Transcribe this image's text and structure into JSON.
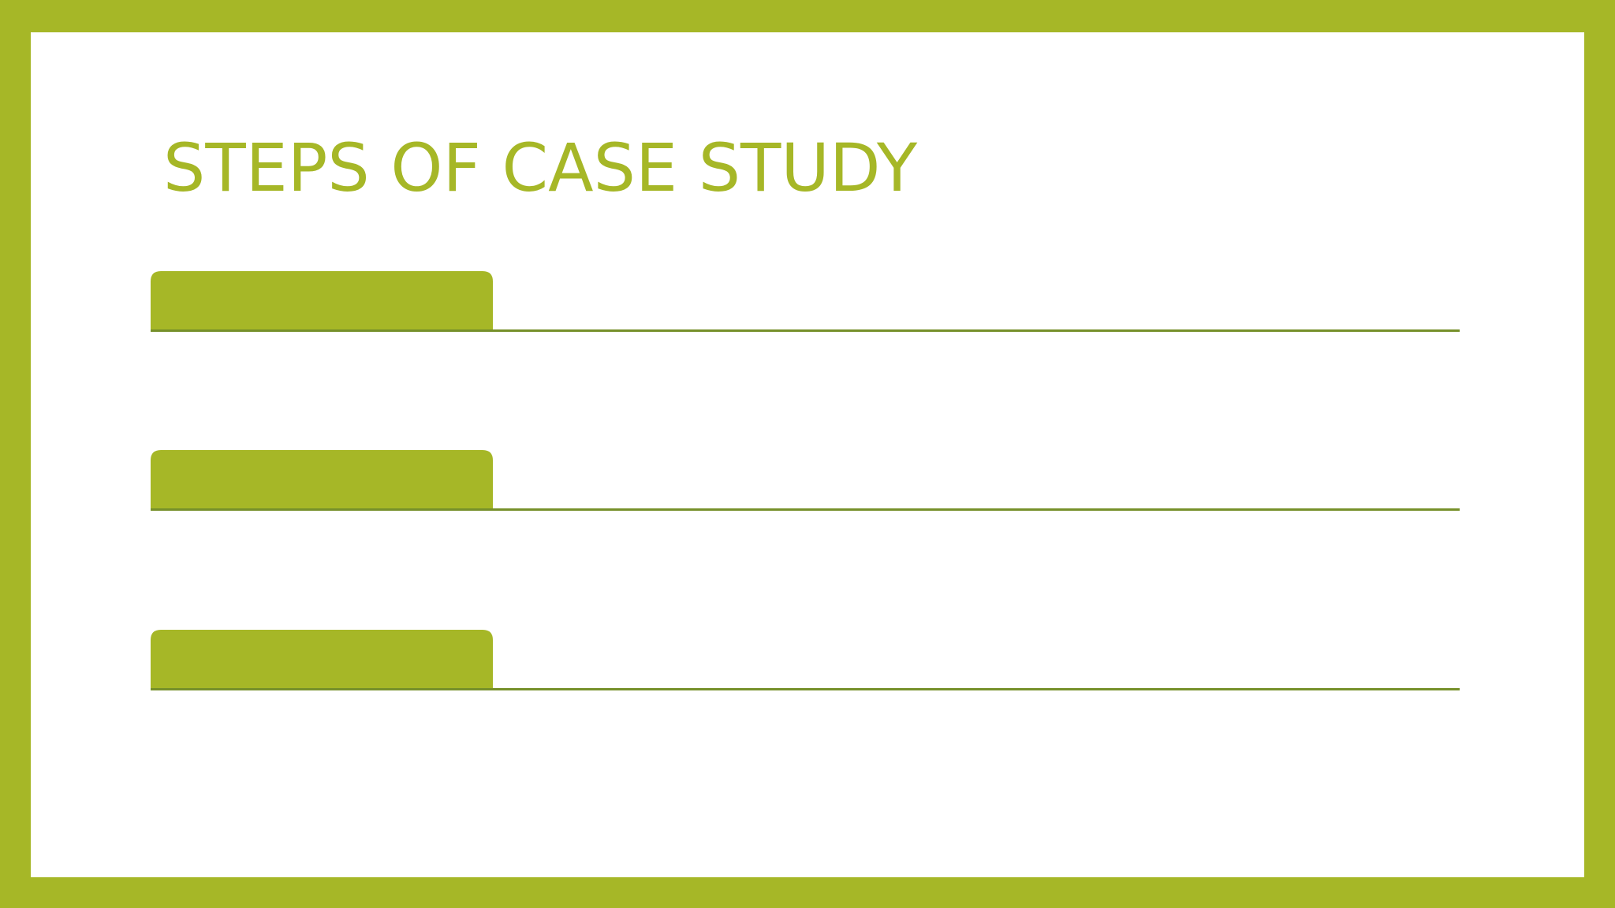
{
  "title": "STEPS OF CASE STUDY"
}
